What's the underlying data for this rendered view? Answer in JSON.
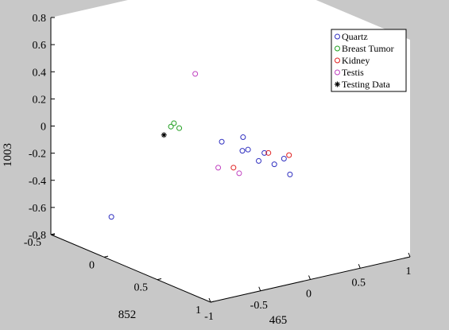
{
  "chart_data": {
    "type": "scatter3d",
    "xlabel": "852",
    "ylabel": "465",
    "zlabel": "1003",
    "xlim": [
      -0.5,
      1
    ],
    "ylim": [
      -1,
      1
    ],
    "zlim": [
      -0.8,
      0.8
    ],
    "x_ticks": [
      "-0.5",
      "0",
      "0.5",
      "1"
    ],
    "y_ticks": [
      "-1",
      "-0.5",
      "0",
      "0.5",
      "1"
    ],
    "z_ticks": [
      "-0.8",
      "-0.6",
      "-0.4",
      "-0.2",
      "0",
      "0.2",
      "0.4",
      "0.6",
      "0.8"
    ],
    "grid": false,
    "legend_position": "top-right",
    "series": [
      {
        "name": "Quartz",
        "color": "#3030c0",
        "marker": "circle",
        "points": [
          {
            "x": 0.0,
            "y": 0.55,
            "z": -0.35
          },
          {
            "x": 0.1,
            "y": 0.6,
            "z": -0.35
          },
          {
            "x": 0.2,
            "y": 0.65,
            "z": -0.4
          },
          {
            "x": 0.05,
            "y": 0.75,
            "z": -0.35
          },
          {
            "x": -0.1,
            "y": 0.55,
            "z": -0.3
          },
          {
            "x": -0.2,
            "y": 0.6,
            "z": -0.35
          },
          {
            "x": -0.1,
            "y": 0.5,
            "z": -0.2
          },
          {
            "x": 0.1,
            "y": 0.5,
            "z": -0.25
          },
          {
            "x": -0.3,
            "y": 0.5,
            "z": -0.3
          },
          {
            "x": -0.4,
            "y": -0.5,
            "z": -0.72
          }
        ]
      },
      {
        "name": "Breast Tumor",
        "color": "#20a020",
        "marker": "circle",
        "points": [
          {
            "x": 0.0,
            "y": -0.33,
            "z": 0.05
          },
          {
            "x": 0.05,
            "y": -0.3,
            "z": 0.05
          },
          {
            "x": 0.0,
            "y": -0.3,
            "z": 0.07
          }
        ]
      },
      {
        "name": "Kidney",
        "color": "#e02020",
        "marker": "circle",
        "points": [
          {
            "x": 0.7,
            "y": -0.1,
            "z": 0.05
          },
          {
            "x": 0.8,
            "y": 0.0,
            "z": 0.05
          },
          {
            "x": 0.7,
            "y": -0.45,
            "z": 0.0
          }
        ]
      },
      {
        "name": "Testis",
        "color": "#c040c0",
        "marker": "circle",
        "points": [
          {
            "x": 0.2,
            "y": -0.3,
            "z": 0.5
          },
          {
            "x": 0.65,
            "y": -0.55,
            "z": 0.0
          },
          {
            "x": 0.8,
            "y": -0.5,
            "z": 0.0
          }
        ]
      },
      {
        "name": "Testing Data",
        "color": "#000000",
        "marker": "star",
        "points": [
          {
            "x": 0.0,
            "y": -0.4,
            "z": 0.0
          }
        ]
      }
    ]
  }
}
